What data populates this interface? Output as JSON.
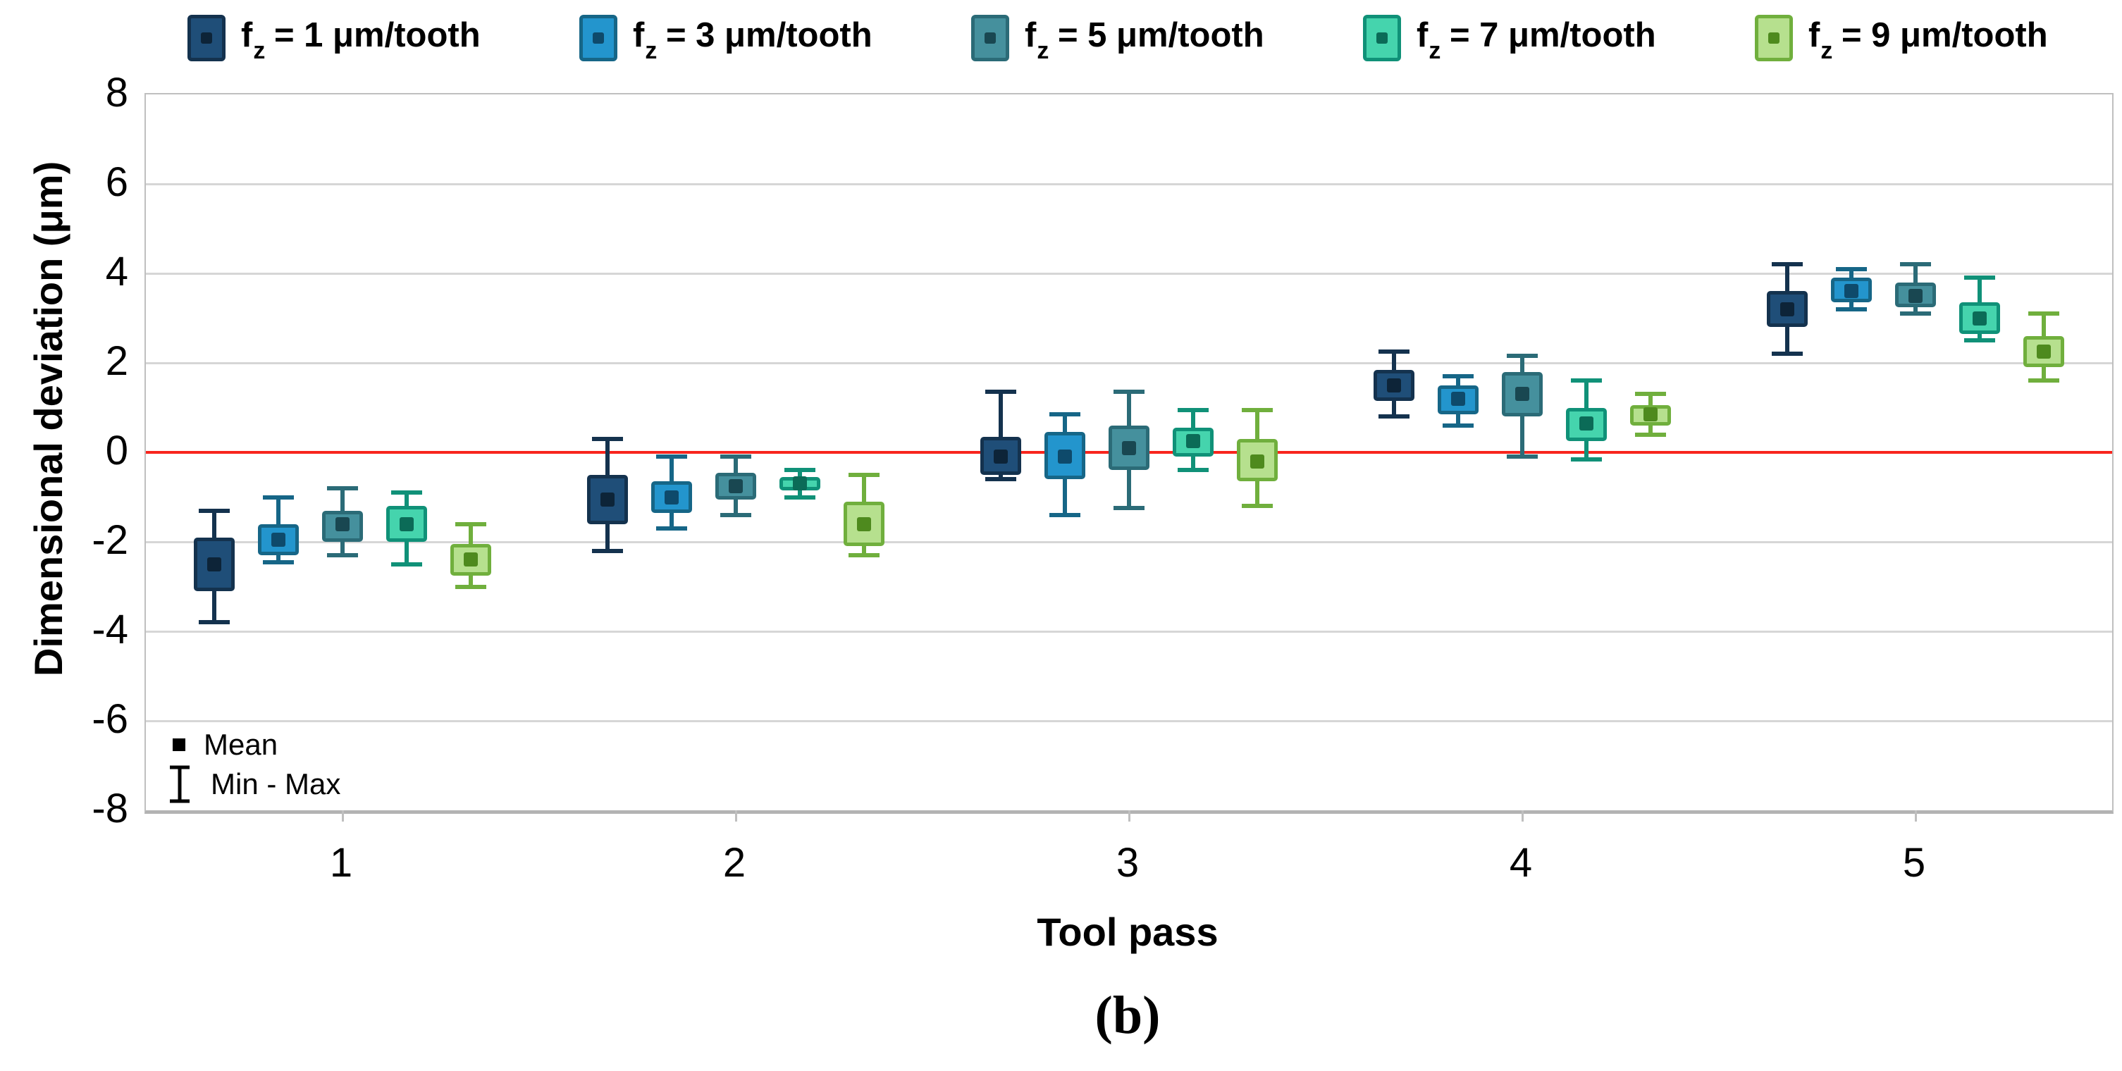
{
  "figure": {
    "caption": "(b)"
  },
  "axes": {
    "y_title": "Dimensional deviation (μm)",
    "x_title": "Tool pass",
    "y_ticks": [
      8,
      6,
      4,
      2,
      0,
      -2,
      -4,
      -6,
      -8
    ],
    "x_ticks": [
      "1",
      "2",
      "3",
      "4",
      "5"
    ]
  },
  "inner_legend": {
    "mean_label": "Mean",
    "minmax_label": "Min - Max"
  },
  "colors": {
    "zero_line": "#f8251d",
    "gridline": "#d6d6d6",
    "frame": "#bfbfbf"
  },
  "chart_data": {
    "type": "box",
    "title": "",
    "xlabel": "Tool pass",
    "ylabel": "Dimensional deviation (μm)",
    "x_categories": [
      1,
      2,
      3,
      4,
      5
    ],
    "ylim": [
      -8,
      8
    ],
    "y_tick_step": 2,
    "zero_reference_line": 0,
    "legend_position": "top",
    "grid": true,
    "box_meaning": "mean marker, box = spread, whiskers = min-max",
    "series": [
      {
        "name": "fz = 1 μm/tooth",
        "label_main": "f",
        "label_sub": "z",
        "label_rest": " = 1 μm/tooth",
        "fill": "#1f4e78",
        "border": "#14324e",
        "marker": "#0d2438",
        "points": [
          {
            "x": 1,
            "mean": -2.5,
            "box_high": -1.9,
            "box_low": -3.1,
            "max": -1.3,
            "min": -3.8
          },
          {
            "x": 2,
            "mean": -1.05,
            "box_high": -0.5,
            "box_low": -1.6,
            "max": 0.3,
            "min": -2.2
          },
          {
            "x": 3,
            "mean": -0.1,
            "box_high": 0.35,
            "box_low": -0.5,
            "max": 1.35,
            "min": -0.6
          },
          {
            "x": 4,
            "mean": 1.5,
            "box_high": 1.85,
            "box_low": 1.15,
            "max": 2.25,
            "min": 0.8
          },
          {
            "x": 5,
            "mean": 3.2,
            "box_high": 3.6,
            "box_low": 2.8,
            "max": 4.2,
            "min": 2.2
          }
        ]
      },
      {
        "name": "fz = 3 μm/tooth",
        "label_main": "f",
        "label_sub": "z",
        "label_rest": " = 3 μm/tooth",
        "fill": "#2395cd",
        "border": "#166687",
        "marker": "#0e4a6b",
        "points": [
          {
            "x": 1,
            "mean": -1.95,
            "box_high": -1.6,
            "box_low": -2.3,
            "max": -1.0,
            "min": -2.45
          },
          {
            "x": 2,
            "mean": -1.0,
            "box_high": -0.65,
            "box_low": -1.35,
            "max": -0.1,
            "min": -1.7
          },
          {
            "x": 3,
            "mean": -0.1,
            "box_high": 0.45,
            "box_low": -0.6,
            "max": 0.85,
            "min": -1.4
          },
          {
            "x": 4,
            "mean": 1.2,
            "box_high": 1.5,
            "box_low": 0.85,
            "max": 1.7,
            "min": 0.6
          },
          {
            "x": 5,
            "mean": 3.6,
            "box_high": 3.9,
            "box_low": 3.35,
            "max": 4.1,
            "min": 3.2
          }
        ]
      },
      {
        "name": "fz = 5 μm/tooth",
        "label_main": "f",
        "label_sub": "z",
        "label_rest": " = 5 μm/tooth",
        "fill": "#45909d",
        "border": "#2b6b77",
        "marker": "#194751",
        "points": [
          {
            "x": 1,
            "mean": -1.6,
            "box_high": -1.3,
            "box_low": -2.0,
            "max": -0.8,
            "min": -2.3
          },
          {
            "x": 2,
            "mean": -0.75,
            "box_high": -0.45,
            "box_low": -1.05,
            "max": -0.1,
            "min": -1.4
          },
          {
            "x": 3,
            "mean": 0.1,
            "box_high": 0.6,
            "box_low": -0.4,
            "max": 1.35,
            "min": -1.25
          },
          {
            "x": 4,
            "mean": 1.3,
            "box_high": 1.8,
            "box_low": 0.8,
            "max": 2.15,
            "min": -0.1
          },
          {
            "x": 5,
            "mean": 3.5,
            "box_high": 3.8,
            "box_low": 3.25,
            "max": 4.2,
            "min": 3.1
          }
        ]
      },
      {
        "name": "fz = 7 μm/tooth",
        "label_main": "f",
        "label_sub": "z",
        "label_rest": " = 7 μm/tooth",
        "fill": "#45d4ad",
        "border": "#109178",
        "marker": "#0b6b57",
        "points": [
          {
            "x": 1,
            "mean": -1.6,
            "box_high": -1.2,
            "box_low": -2.0,
            "max": -0.9,
            "min": -2.5
          },
          {
            "x": 2,
            "mean": -0.7,
            "box_high": -0.55,
            "box_low": -0.85,
            "max": -0.4,
            "min": -1.0
          },
          {
            "x": 3,
            "mean": 0.25,
            "box_high": 0.55,
            "box_low": -0.1,
            "max": 0.95,
            "min": -0.4
          },
          {
            "x": 4,
            "mean": 0.65,
            "box_high": 1.0,
            "box_low": 0.25,
            "max": 1.6,
            "min": -0.15
          },
          {
            "x": 5,
            "mean": 3.0,
            "box_high": 3.35,
            "box_low": 2.65,
            "max": 3.9,
            "min": 2.5
          }
        ]
      },
      {
        "name": "fz = 9 μm/tooth",
        "label_main": "f",
        "label_sub": "z",
        "label_rest": " = 9 μm/tooth",
        "fill": "#b6e08e",
        "border": "#70af3d",
        "marker": "#4e8a1e",
        "points": [
          {
            "x": 1,
            "mean": -2.4,
            "box_high": -2.05,
            "box_low": -2.75,
            "max": -1.6,
            "min": -3.0
          },
          {
            "x": 2,
            "mean": -1.6,
            "box_high": -1.1,
            "box_low": -2.1,
            "max": -0.5,
            "min": -2.3
          },
          {
            "x": 3,
            "mean": -0.2,
            "box_high": 0.3,
            "box_low": -0.65,
            "max": 0.95,
            "min": -1.2
          },
          {
            "x": 4,
            "mean": 0.85,
            "box_high": 1.05,
            "box_low": 0.6,
            "max": 1.3,
            "min": 0.4
          },
          {
            "x": 5,
            "mean": 2.25,
            "box_high": 2.6,
            "box_low": 1.9,
            "max": 3.1,
            "min": 1.6
          }
        ]
      }
    ]
  }
}
